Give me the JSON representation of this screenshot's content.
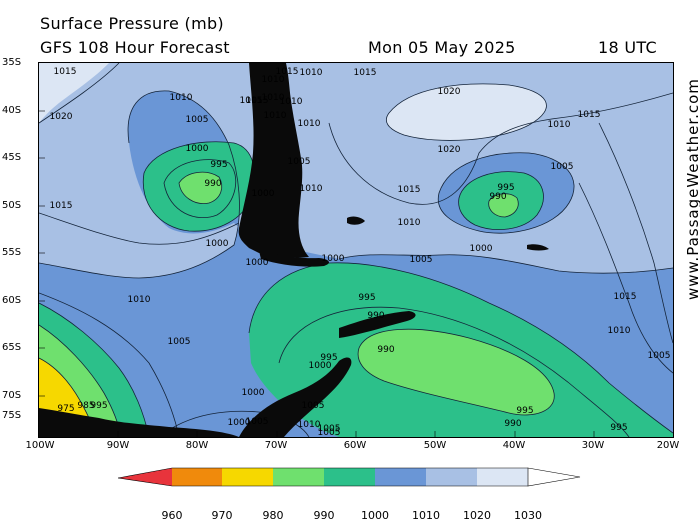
{
  "header": {
    "title": "Surface Pressure (mb)",
    "model": "GFS 108 Hour Forecast",
    "date": "Mon 05 May 2025",
    "time": "18 UTC"
  },
  "axes": {
    "lat_labels": [
      "35S",
      "40S",
      "45S",
      "50S",
      "55S",
      "60S",
      "65S",
      "70S",
      "75S"
    ],
    "lon_labels": [
      "100W",
      "90W",
      "80W",
      "70W",
      "60W",
      "50W",
      "40W",
      "30W",
      "20W"
    ]
  },
  "credit": "www.PassageWeather.com",
  "legend": {
    "ticks": [
      "960",
      "970",
      "980",
      "990",
      "1000",
      "1010",
      "1020",
      "1030"
    ],
    "colors": [
      "#e8343c",
      "#f08a0c",
      "#f6d800",
      "#6fe06e",
      "#2cc08a",
      "#6a96d6",
      "#a8c0e4",
      "#dce6f4",
      "#ffffff"
    ]
  },
  "isobar_labels": [
    {
      "text": "1015"
    },
    {
      "text": "1010"
    },
    {
      "text": "1015"
    },
    {
      "text": "1010"
    },
    {
      "text": "1010"
    },
    {
      "text": "1015"
    },
    {
      "text": "1010"
    },
    {
      "text": "1010"
    },
    {
      "text": "1020"
    },
    {
      "text": "1005"
    },
    {
      "text": "1010"
    },
    {
      "text": "1020"
    },
    {
      "text": "1015"
    },
    {
      "text": "1010"
    },
    {
      "text": "1000"
    },
    {
      "text": "995"
    },
    {
      "text": "1005"
    },
    {
      "text": "990"
    },
    {
      "text": "1000"
    },
    {
      "text": "1015"
    },
    {
      "text": "1015"
    },
    {
      "text": "1010"
    },
    {
      "text": "1000"
    },
    {
      "text": "1000"
    },
    {
      "text": "1000"
    },
    {
      "text": "1005"
    },
    {
      "text": "1005"
    },
    {
      "text": "995"
    },
    {
      "text": "990"
    },
    {
      "text": "1000"
    },
    {
      "text": "1010"
    },
    {
      "text": "995"
    },
    {
      "text": "990"
    },
    {
      "text": "995"
    },
    {
      "text": "1000"
    },
    {
      "text": "1005"
    },
    {
      "text": "990"
    },
    {
      "text": "1000"
    },
    {
      "text": "1005"
    },
    {
      "text": "1010"
    },
    {
      "text": "1005"
    },
    {
      "text": "1005"
    },
    {
      "text": "1005"
    },
    {
      "text": "1015"
    },
    {
      "text": "1010"
    },
    {
      "text": "1005"
    },
    {
      "text": "990"
    },
    {
      "text": "995"
    },
    {
      "text": "995"
    },
    {
      "text": "1000"
    },
    {
      "text": "975"
    },
    {
      "text": "985"
    },
    {
      "text": "995"
    },
    {
      "text": "1020"
    },
    {
      "text": "1015"
    },
    {
      "text": "1010"
    },
    {
      "text": "1010"
    },
    {
      "text": "1015"
    }
  ]
}
